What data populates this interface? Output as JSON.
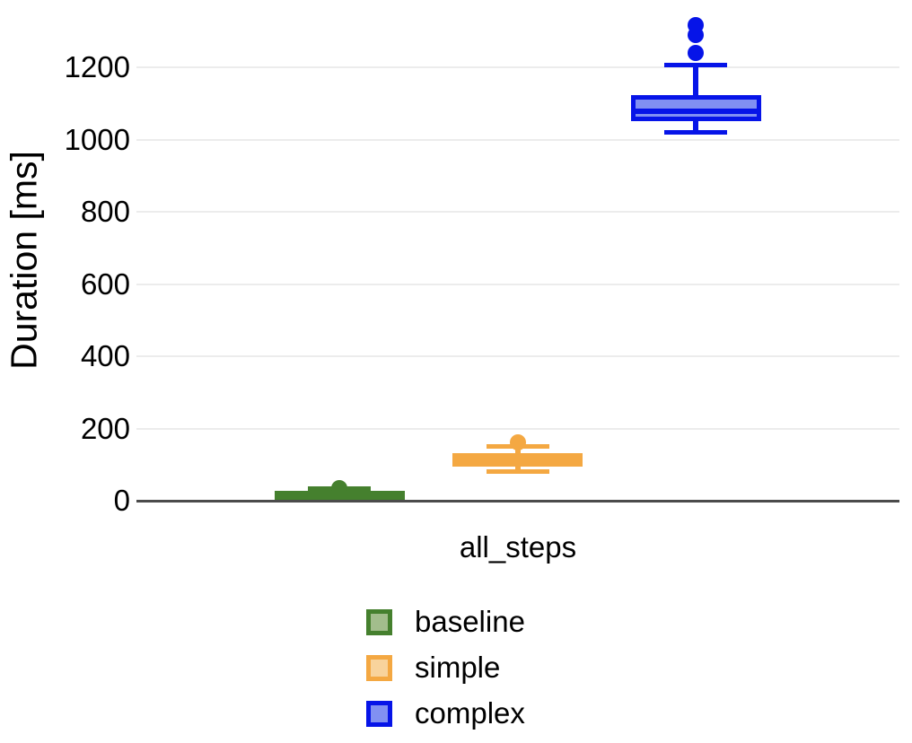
{
  "chart_data": {
    "type": "boxplot",
    "title": "",
    "ylabel": "Duration [ms]",
    "xlabel": "",
    "categories": [
      "all_steps"
    ],
    "yticks": [
      0,
      200,
      400,
      600,
      800,
      1000,
      1200
    ],
    "ylim": [
      0,
      1386
    ],
    "grid": true,
    "legend_position": "bottom-left",
    "axis_color": "#4b4b4b",
    "grid_color": "#ececec",
    "series": [
      {
        "name": "baseline",
        "stroke": "#45802e",
        "fill": "#a2bd8c",
        "box": {
          "whisker_low": 8,
          "q1": 14,
          "median": 20,
          "q3": 27,
          "whisker_high": 33,
          "outliers": [
            35
          ]
        }
      },
      {
        "name": "simple",
        "stroke": "#f4a842",
        "fill": "#f8d39c",
        "box": {
          "whisker_low": 80,
          "q1": 95,
          "median": 113,
          "q3": 131,
          "whisker_high": 151,
          "outliers": [
            162
          ]
        }
      },
      {
        "name": "complex",
        "stroke": "#0614e8",
        "fill": "#8190f2",
        "box": {
          "whisker_low": 1019,
          "q1": 1051,
          "median": 1078,
          "q3": 1122,
          "whisker_high": 1205,
          "outliers": [
            1240,
            1290,
            1317
          ]
        }
      }
    ]
  }
}
